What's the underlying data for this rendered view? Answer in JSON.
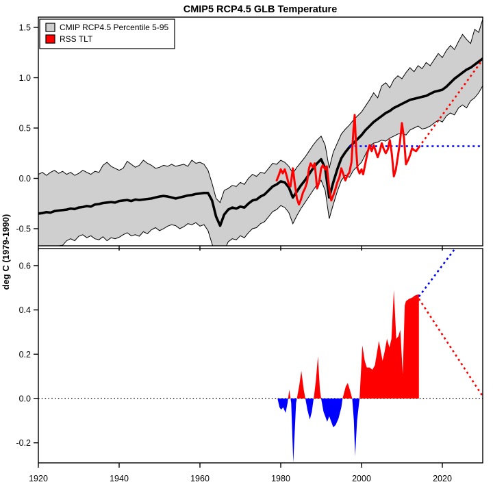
{
  "title": "CMIP5 RCP4.5 GLB Temperature",
  "y_axis_label": "deg C (1979-1990)",
  "colors": {
    "background": "#ffffff",
    "band_fill": "#cfcfcf",
    "band_edge": "#000000",
    "median_line": "#000000",
    "rss_line": "#ff0000",
    "obs_flat_projection": "#0000ff",
    "model_projection": "#ff0000",
    "zero_line": "#000000"
  },
  "legend": {
    "position": "top-left",
    "items": [
      {
        "label": "CMIP RCP4.5 Percentile 5-95",
        "color": "#cfcfcf"
      },
      {
        "label": "RSS TLT",
        "color": "#ff0000"
      }
    ]
  },
  "chart_data": [
    {
      "id": "top-panel",
      "type": "area",
      "title": "CMIP5 RCP4.5 GLB Temperature",
      "xlabel": "",
      "ylabel": "deg C (1979-1990)",
      "xlim": [
        1920,
        2030
      ],
      "ylim": [
        -0.67,
        1.602
      ],
      "grid": false,
      "xticks": [
        1920,
        1940,
        1960,
        1980,
        2000,
        2020
      ],
      "xtick_labels": [],
      "yticks": [
        -0.5,
        0.0,
        0.5,
        1.0,
        1.5
      ],
      "ytick_labels": [
        "-0.5",
        "0.0",
        "0.5",
        "1.0",
        "1.5"
      ],
      "series": {
        "years": [
          1920,
          1921,
          1922,
          1923,
          1924,
          1925,
          1926,
          1927,
          1928,
          1929,
          1930,
          1931,
          1932,
          1933,
          1934,
          1935,
          1936,
          1937,
          1938,
          1939,
          1940,
          1941,
          1942,
          1943,
          1944,
          1945,
          1946,
          1947,
          1948,
          1949,
          1950,
          1951,
          1952,
          1953,
          1954,
          1955,
          1956,
          1957,
          1958,
          1959,
          1960,
          1961,
          1962,
          1963,
          1964,
          1965,
          1966,
          1967,
          1968,
          1969,
          1970,
          1971,
          1972,
          1973,
          1974,
          1975,
          1976,
          1977,
          1978,
          1979,
          1980,
          1981,
          1982,
          1983,
          1984,
          1985,
          1986,
          1987,
          1988,
          1989,
          1990,
          1991,
          1992,
          1993,
          1994,
          1995,
          1996,
          1997,
          1998,
          1999,
          2000,
          2001,
          2002,
          2003,
          2004,
          2005,
          2006,
          2007,
          2008,
          2009,
          2010,
          2011,
          2012,
          2013,
          2014,
          2015,
          2016,
          2017,
          2018,
          2019,
          2020,
          2021,
          2022,
          2023,
          2024,
          2025,
          2026,
          2027,
          2028,
          2029,
          2030
        ],
        "cmip_upper_p95": [
          0.04,
          0.06,
          0.03,
          0.06,
          0.08,
          0.05,
          0.07,
          0.04,
          0.06,
          0.03,
          0.05,
          0.08,
          0.06,
          0.04,
          0.07,
          0.06,
          0.13,
          0.16,
          0.12,
          0.1,
          0.08,
          0.1,
          0.17,
          0.14,
          0.11,
          0.13,
          0.18,
          0.15,
          0.13,
          0.1,
          0.11,
          0.13,
          0.12,
          0.14,
          0.12,
          0.13,
          0.14,
          0.12,
          0.18,
          0.15,
          0.16,
          0.14,
          0.08,
          -0.05,
          -0.2,
          -0.24,
          -0.12,
          -0.1,
          -0.07,
          -0.08,
          -0.04,
          -0.06,
          0.0,
          0.04,
          0.02,
          0.06,
          0.05,
          0.1,
          0.15,
          0.14,
          0.18,
          0.16,
          0.12,
          0.05,
          0.11,
          0.16,
          0.21,
          0.27,
          0.33,
          0.38,
          0.42,
          0.33,
          0.1,
          0.26,
          0.35,
          0.44,
          0.49,
          0.53,
          0.58,
          0.62,
          0.66,
          0.72,
          0.78,
          0.85,
          0.8,
          0.92,
          0.95,
          0.9,
          0.98,
          1.02,
          0.99,
          1.05,
          1.1,
          1.06,
          1.12,
          1.09,
          1.15,
          1.12,
          1.18,
          1.24,
          1.2,
          1.27,
          1.32,
          1.28,
          1.36,
          1.43,
          1.38,
          1.34,
          1.48,
          1.45,
          1.58
        ],
        "cmip_median": [
          -0.35,
          -0.345,
          -0.335,
          -0.34,
          -0.325,
          -0.32,
          -0.315,
          -0.31,
          -0.3,
          -0.305,
          -0.29,
          -0.285,
          -0.275,
          -0.28,
          -0.26,
          -0.255,
          -0.245,
          -0.24,
          -0.235,
          -0.24,
          -0.225,
          -0.22,
          -0.215,
          -0.225,
          -0.21,
          -0.215,
          -0.21,
          -0.205,
          -0.2,
          -0.19,
          -0.18,
          -0.175,
          -0.18,
          -0.19,
          -0.2,
          -0.19,
          -0.18,
          -0.17,
          -0.165,
          -0.155,
          -0.15,
          -0.145,
          -0.145,
          -0.22,
          -0.38,
          -0.47,
          -0.36,
          -0.31,
          -0.29,
          -0.3,
          -0.28,
          -0.29,
          -0.25,
          -0.22,
          -0.21,
          -0.18,
          -0.16,
          -0.12,
          -0.08,
          -0.06,
          -0.03,
          -0.04,
          -0.09,
          -0.19,
          -0.13,
          -0.07,
          -0.02,
          0.04,
          0.1,
          0.15,
          0.19,
          0.1,
          -0.19,
          -0.04,
          0.09,
          0.2,
          0.26,
          0.31,
          0.35,
          0.39,
          0.43,
          0.48,
          0.52,
          0.56,
          0.59,
          0.62,
          0.65,
          0.67,
          0.7,
          0.72,
          0.74,
          0.76,
          0.78,
          0.79,
          0.8,
          0.81,
          0.82,
          0.84,
          0.86,
          0.87,
          0.88,
          0.91,
          0.95,
          0.99,
          1.02,
          1.05,
          1.08,
          1.1,
          1.13,
          1.16,
          1.19
        ],
        "cmip_lower_p5": [
          -0.7,
          -0.69,
          -0.71,
          -0.68,
          -0.7,
          -0.67,
          -0.665,
          -0.62,
          -0.6,
          -0.62,
          -0.575,
          -0.56,
          -0.59,
          -0.57,
          -0.6,
          -0.61,
          -0.58,
          -0.62,
          -0.59,
          -0.6,
          -0.585,
          -0.56,
          -0.54,
          -0.57,
          -0.56,
          -0.575,
          -0.53,
          -0.55,
          -0.51,
          -0.49,
          -0.52,
          -0.5,
          -0.475,
          -0.46,
          -0.47,
          -0.5,
          -0.48,
          -0.45,
          -0.46,
          -0.44,
          -0.475,
          -0.46,
          -0.52,
          -0.65,
          -0.78,
          -0.82,
          -0.72,
          -0.63,
          -0.6,
          -0.61,
          -0.57,
          -0.59,
          -0.54,
          -0.5,
          -0.49,
          -0.45,
          -0.43,
          -0.38,
          -0.33,
          -0.31,
          -0.27,
          -0.29,
          -0.34,
          -0.45,
          -0.37,
          -0.3,
          -0.24,
          -0.18,
          -0.12,
          -0.06,
          -0.02,
          -0.12,
          -0.4,
          -0.26,
          -0.13,
          -0.02,
          0.03,
          0.01,
          0.08,
          0.12,
          0.16,
          0.24,
          0.32,
          0.35,
          0.36,
          0.38,
          0.37,
          0.4,
          0.42,
          0.44,
          0.45,
          0.43,
          0.48,
          0.5,
          0.52,
          0.49,
          0.5,
          0.52,
          0.55,
          0.58,
          0.56,
          0.62,
          0.65,
          0.63,
          0.7,
          0.73,
          0.7,
          0.77,
          0.8,
          0.85,
          0.92
        ],
        "rss_tlt": [
          [
            1979.0,
            -0.02
          ],
          [
            1979.5,
            0.03
          ],
          [
            1980.0,
            0.09
          ],
          [
            1980.5,
            0.05
          ],
          [
            1981.0,
            0.09
          ],
          [
            1981.5,
            0.02
          ],
          [
            1982.0,
            -0.06
          ],
          [
            1982.4,
            -0.08
          ],
          [
            1983.0,
            0.1
          ],
          [
            1983.5,
            -0.06
          ],
          [
            1984.0,
            -0.2
          ],
          [
            1984.5,
            -0.26
          ],
          [
            1985.0,
            -0.21
          ],
          [
            1985.5,
            -0.14
          ],
          [
            1986.0,
            -0.1
          ],
          [
            1986.5,
            -0.04
          ],
          [
            1987.0,
            0.1
          ],
          [
            1987.4,
            0.15
          ],
          [
            1988.0,
            0.11
          ],
          [
            1988.4,
            0.15
          ],
          [
            1989.0,
            -0.1
          ],
          [
            1989.5,
            -0.04
          ],
          [
            1990.0,
            0.1
          ],
          [
            1990.4,
            0.13
          ],
          [
            1991.0,
            0.09
          ],
          [
            1991.4,
            0.12
          ],
          [
            1992.0,
            -0.1
          ],
          [
            1992.5,
            -0.22
          ],
          [
            1993.0,
            -0.17
          ],
          [
            1993.5,
            -0.11
          ],
          [
            1994.0,
            -0.04
          ],
          [
            1994.5,
            0.01
          ],
          [
            1995.0,
            0.1
          ],
          [
            1995.5,
            0.04
          ],
          [
            1996.0,
            -0.02
          ],
          [
            1996.5,
            0.03
          ],
          [
            1997.0,
            0.06
          ],
          [
            1997.5,
            0.16
          ],
          [
            1998.0,
            0.48
          ],
          [
            1998.3,
            0.63
          ],
          [
            1998.7,
            0.28
          ],
          [
            1999.0,
            0.1
          ],
          [
            1999.5,
            0.05
          ],
          [
            2000.0,
            0.09
          ],
          [
            2000.4,
            0.04
          ],
          [
            2001.0,
            0.16
          ],
          [
            2001.5,
            0.26
          ],
          [
            2002.0,
            0.33
          ],
          [
            2002.5,
            0.27
          ],
          [
            2003.0,
            0.33
          ],
          [
            2003.5,
            0.27
          ],
          [
            2004.0,
            0.21
          ],
          [
            2004.5,
            0.27
          ],
          [
            2005.0,
            0.35
          ],
          [
            2005.5,
            0.29
          ],
          [
            2006.0,
            0.25
          ],
          [
            2006.5,
            0.29
          ],
          [
            2007.0,
            0.38
          ],
          [
            2007.5,
            0.24
          ],
          [
            2008.0,
            0.02
          ],
          [
            2008.5,
            0.09
          ],
          [
            2009.0,
            0.22
          ],
          [
            2009.5,
            0.36
          ],
          [
            2010.0,
            0.55
          ],
          [
            2010.5,
            0.4
          ],
          [
            2011.0,
            0.14
          ],
          [
            2011.5,
            0.18
          ],
          [
            2012.0,
            0.23
          ],
          [
            2012.5,
            0.3
          ],
          [
            2013.0,
            0.28
          ],
          [
            2013.5,
            0.27
          ],
          [
            2014.2,
            0.31
          ]
        ],
        "obs_flat_projection_dotted": [
          [
            1997.0,
            0.32
          ],
          [
            2030,
            0.32
          ]
        ],
        "model_projection_dotted": [
          [
            2014.2,
            0.31
          ],
          [
            2030,
            1.18
          ]
        ]
      }
    },
    {
      "id": "bottom-panel",
      "type": "area",
      "title": "",
      "xlabel": "",
      "ylabel": "deg C (1979-1990)",
      "xlim": [
        1920,
        2030
      ],
      "ylim": [
        -0.2906,
        0.677
      ],
      "grid": false,
      "xticks": [
        1920,
        1940,
        1960,
        1980,
        2000,
        2020
      ],
      "xtick_labels": [
        "1920",
        "1940",
        "1960",
        "1980",
        "2000",
        "2020"
      ],
      "yticks": [
        -0.2,
        0.0,
        0.2,
        0.4,
        0.6
      ],
      "ytick_labels": [
        "-0.2",
        "0.0",
        "0.2",
        "0.4",
        "0.6"
      ],
      "series": {
        "model_minus_obs": [
          [
            1979.2,
            0.0
          ],
          [
            1979.7,
            -0.04
          ],
          [
            1980.1,
            -0.05
          ],
          [
            1980.6,
            -0.04
          ],
          [
            1981.2,
            -0.065
          ],
          [
            1981.7,
            -0.02
          ],
          [
            1982.1,
            0.04
          ],
          [
            1982.6,
            -0.02
          ],
          [
            1983.1,
            -0.29
          ],
          [
            1983.8,
            -0.02
          ],
          [
            1984.2,
            0.02
          ],
          [
            1984.6,
            0.06
          ],
          [
            1985.1,
            0.125
          ],
          [
            1985.7,
            0.04
          ],
          [
            1986.1,
            0.0
          ],
          [
            1986.6,
            -0.05
          ],
          [
            1987.2,
            -0.095
          ],
          [
            1987.7,
            -0.06
          ],
          [
            1988.3,
            0.02
          ],
          [
            1988.7,
            0.08
          ],
          [
            1989.2,
            0.19
          ],
          [
            1989.7,
            0.04
          ],
          [
            1990.0,
            0.0
          ],
          [
            1990.6,
            -0.06
          ],
          [
            1991.5,
            -0.105
          ],
          [
            1992.0,
            -0.08
          ],
          [
            1993.0,
            -0.13
          ],
          [
            1993.6,
            -0.12
          ],
          [
            1994.3,
            -0.09
          ],
          [
            1995.0,
            -0.04
          ],
          [
            1995.3,
            0.0
          ],
          [
            1996.1,
            0.055
          ],
          [
            1996.6,
            0.07
          ],
          [
            1997.1,
            0.04
          ],
          [
            1997.7,
            0.0
          ],
          [
            1998.1,
            -0.1
          ],
          [
            1998.4,
            -0.26
          ],
          [
            1998.9,
            -0.1
          ],
          [
            1999.5,
            0.0
          ],
          [
            2000.2,
            0.24
          ],
          [
            2000.8,
            0.17
          ],
          [
            2001.3,
            0.14
          ],
          [
            2002.0,
            0.14
          ],
          [
            2002.7,
            0.13
          ],
          [
            2003.3,
            0.15
          ],
          [
            2004.3,
            0.26
          ],
          [
            2005.2,
            0.17
          ],
          [
            2005.7,
            0.21
          ],
          [
            2006.3,
            0.27
          ],
          [
            2006.9,
            0.23
          ],
          [
            2007.4,
            0.27
          ],
          [
            2008.0,
            0.49
          ],
          [
            2008.6,
            0.27
          ],
          [
            2009.1,
            0.28
          ],
          [
            2009.6,
            0.31
          ],
          [
            2010.2,
            0.11
          ],
          [
            2010.7,
            0.42
          ],
          [
            2011.0,
            0.44
          ],
          [
            2011.8,
            0.45
          ],
          [
            2012.5,
            0.455
          ],
          [
            2013.2,
            0.465
          ],
          [
            2014.0,
            0.47
          ],
          [
            2014.2,
            0.47
          ]
        ],
        "zero_line_dotted": [
          [
            1920,
            0
          ],
          [
            2030,
            0
          ]
        ],
        "diff_if_obs_flat_dotted": [
          [
            2014.2,
            0.46
          ],
          [
            2024.5,
            0.71
          ]
        ],
        "diff_if_obs_follows_model_dotted": [
          [
            2014.2,
            0.45
          ],
          [
            2030,
            0.01
          ]
        ]
      }
    }
  ]
}
